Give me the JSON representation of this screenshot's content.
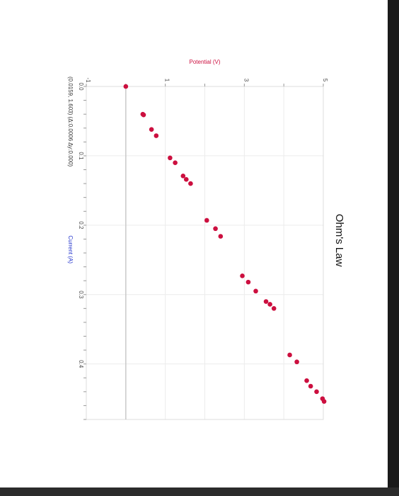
{
  "chart_data": {
    "type": "scatter",
    "title": "Ohm's Law",
    "xlabel": "Current (A)",
    "ylabel": "Potential (V)",
    "xlim": [
      0,
      0.48
    ],
    "ylim": [
      -1,
      5
    ],
    "x_ticks": [
      "0.0",
      "0.1",
      "0.2",
      "0.3",
      "0.4"
    ],
    "y_ticks": [
      "-1",
      "1",
      "3",
      "5"
    ],
    "readout": "(0.0159, 1.603) (Δ:0.0006 Δy:0.000)",
    "grid": true,
    "legend": "none",
    "colors": {
      "points": "#cc0f3f",
      "xlabel": "#2233cc",
      "ylabel": "#cc0f3f",
      "baseline": "#c9c9c9"
    },
    "series": [
      {
        "x": [
          0.0,
          0.04,
          0.041,
          0.062,
          0.071,
          0.103,
          0.11,
          0.129,
          0.134,
          0.14,
          0.193,
          0.205,
          0.216,
          0.273,
          0.282,
          0.295,
          0.31,
          0.314,
          0.32,
          0.387,
          0.397,
          0.424,
          0.432,
          0.44,
          0.45,
          0.454
        ],
        "y": [
          0.0,
          0.43,
          0.45,
          0.65,
          0.77,
          1.12,
          1.25,
          1.45,
          1.53,
          1.64,
          2.05,
          2.27,
          2.4,
          2.95,
          3.1,
          3.29,
          3.55,
          3.65,
          3.75,
          4.15,
          4.33,
          4.58,
          4.68,
          4.83,
          4.98,
          5.02
        ]
      }
    ]
  }
}
